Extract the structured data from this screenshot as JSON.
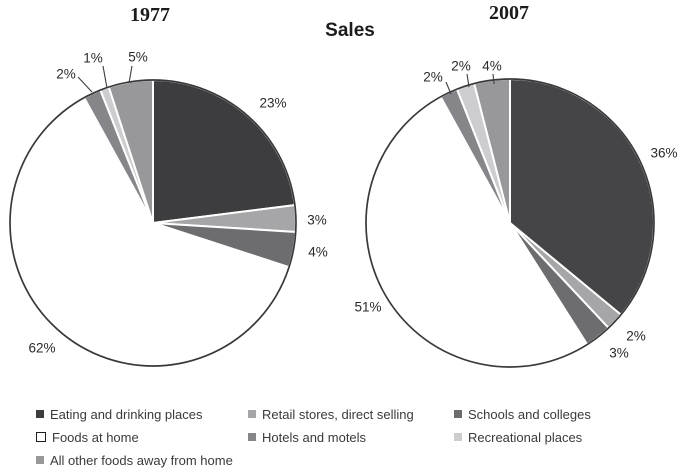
{
  "title": "Sales",
  "chart_data": [
    {
      "type": "pie",
      "title": "1977",
      "categories": [
        "Eating and drinking places",
        "Retail stores, direct selling",
        "Schools and colleges",
        "Foods at home",
        "Hotels and motels",
        "Recreational places",
        "All other foods away from home"
      ],
      "values": [
        23,
        3,
        4,
        62,
        2,
        1,
        5
      ],
      "percent_labels": [
        "23%",
        "3%",
        "4%",
        "62%",
        "2%",
        "1%",
        "5%"
      ],
      "colors": [
        "#3d3d3f",
        "#a6a6a8",
        "#6d6d70",
        "#ffffff",
        "#86868a",
        "#cdcdcf",
        "#98989b"
      ],
      "start": "12-oclock",
      "direction": "clockwise",
      "legend_position": "bottom"
    },
    {
      "type": "pie",
      "title": "2007",
      "categories": [
        "Eating and drinking places",
        "Retail stores, direct selling",
        "Schools and colleges",
        "Foods at home",
        "Hotels and motels",
        "Recreational places",
        "All other foods away from home"
      ],
      "values": [
        36,
        2,
        3,
        51,
        2,
        2,
        4
      ],
      "percent_labels": [
        "36%",
        "2%",
        "3%",
        "51%",
        "2%",
        "2%",
        "4%"
      ],
      "colors": [
        "#454547",
        "#a6a6a8",
        "#6d6d70",
        "#ffffff",
        "#86868a",
        "#cdcdcf",
        "#98989b"
      ],
      "start": "12-oclock",
      "direction": "clockwise",
      "legend_position": "bottom"
    }
  ],
  "legend": {
    "items": [
      {
        "label": "Eating and drinking places",
        "swatch_color": "#3d3d3f",
        "swatch_outlined": false
      },
      {
        "label": "Retail stores, direct selling",
        "swatch_color": "#a6a6a8",
        "swatch_outlined": false
      },
      {
        "label": "Schools and colleges",
        "swatch_color": "#6d6d70",
        "swatch_outlined": false
      },
      {
        "label": "Foods at home",
        "swatch_color": "#ffffff",
        "swatch_outlined": true
      },
      {
        "label": "Hotels and motels",
        "swatch_color": "#86868a",
        "swatch_outlined": false
      },
      {
        "label": "Recreational places",
        "swatch_color": "#cdcdcf",
        "swatch_outlined": false
      },
      {
        "label": "All other foods away from home",
        "swatch_color": "#98989b",
        "swatch_outlined": false
      }
    ]
  }
}
